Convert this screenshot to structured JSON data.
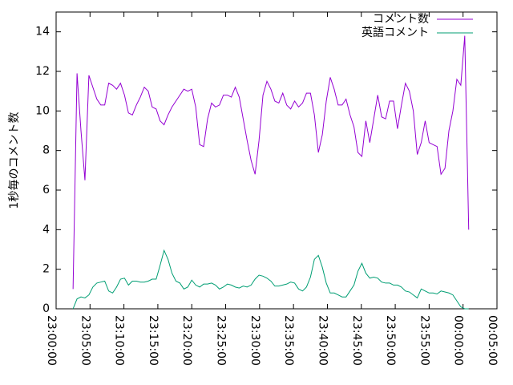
{
  "chart_data": {
    "type": "line",
    "ylabel": "1秒毎のコメント数",
    "legend": "top right",
    "x": [
      "23:02:30",
      "23:03:05",
      "23:03:40",
      "23:04:15",
      "23:04:50",
      "23:05:25",
      "23:06:00",
      "23:06:35",
      "23:07:10",
      "23:07:45",
      "23:08:20",
      "23:08:55",
      "23:09:30",
      "23:10:05",
      "23:10:40",
      "23:11:15",
      "23:11:50",
      "23:12:25",
      "23:13:00",
      "23:13:35",
      "23:14:10",
      "23:14:45",
      "23:15:20",
      "23:15:55",
      "23:16:30",
      "23:17:05",
      "23:17:40",
      "23:18:15",
      "23:18:50",
      "23:19:25",
      "23:20:00",
      "23:20:35",
      "23:21:10",
      "23:21:45",
      "23:22:20",
      "23:22:55",
      "23:23:30",
      "23:24:05",
      "23:24:40",
      "23:25:15",
      "23:25:50",
      "23:26:25",
      "23:27:00",
      "23:27:35",
      "23:28:10",
      "23:28:45",
      "23:29:20",
      "23:29:55",
      "23:30:30",
      "23:31:05",
      "23:31:40",
      "23:32:15",
      "23:32:50",
      "23:33:25",
      "23:34:00",
      "23:34:35",
      "23:35:10",
      "23:35:45",
      "23:36:20",
      "23:36:55",
      "23:37:30",
      "23:38:05",
      "23:38:40",
      "23:39:15",
      "23:39:50",
      "23:40:25",
      "23:41:00",
      "23:41:35",
      "23:42:10",
      "23:42:45",
      "23:43:20",
      "23:43:55",
      "23:44:30",
      "23:45:05",
      "23:45:40",
      "23:46:15",
      "23:46:50",
      "23:47:25",
      "23:48:00",
      "23:48:35",
      "23:49:10",
      "23:49:45",
      "23:50:20",
      "23:50:55",
      "23:51:30",
      "23:52:05",
      "23:52:40",
      "23:53:15",
      "23:53:50",
      "23:54:25",
      "23:55:00",
      "23:55:35",
      "23:56:10",
      "23:56:45",
      "23:57:20",
      "23:57:55",
      "23:58:30",
      "23:59:05",
      "23:59:40",
      "00:00:15",
      "00:00:50"
    ],
    "series": [
      {
        "name": "コメント数",
        "color": "#9400d3",
        "values": [
          1.0,
          11.9,
          9.0,
          6.5,
          11.8,
          11.2,
          10.6,
          10.3,
          10.3,
          11.4,
          11.3,
          11.1,
          11.4,
          10.8,
          9.9,
          9.8,
          10.3,
          10.7,
          11.2,
          11.0,
          10.2,
          10.1,
          9.5,
          9.3,
          9.8,
          10.2,
          10.5,
          10.8,
          11.1,
          11.0,
          11.1,
          10.2,
          8.3,
          8.2,
          9.6,
          10.4,
          10.2,
          10.3,
          10.8,
          10.8,
          10.7,
          11.2,
          10.7,
          9.6,
          8.5,
          7.5,
          6.8,
          8.5,
          10.8,
          11.5,
          11.1,
          10.5,
          10.4,
          10.9,
          10.3,
          10.1,
          10.5,
          10.2,
          10.4,
          10.9,
          10.9,
          9.8,
          7.9,
          8.8,
          10.5,
          11.7,
          11.1,
          10.3,
          10.3,
          10.6,
          9.8,
          9.2,
          7.9,
          7.7,
          9.5,
          8.4,
          9.6,
          10.8,
          9.7,
          9.6,
          10.5,
          10.5,
          9.1,
          10.3,
          11.4,
          11.0,
          10.0,
          7.8,
          8.4,
          9.5,
          8.4,
          8.3,
          8.2,
          6.8,
          7.1,
          9.0,
          10.0,
          11.6,
          11.3,
          13.8,
          4.0
        ]
      },
      {
        "name": "英語コメント",
        "color": "#009e73",
        "values": [
          0,
          0.5,
          0.6,
          0.55,
          0.7,
          1.1,
          1.3,
          1.35,
          1.4,
          0.9,
          0.8,
          1.1,
          1.5,
          1.55,
          1.2,
          1.4,
          1.4,
          1.35,
          1.35,
          1.4,
          1.5,
          1.5,
          2.2,
          2.95,
          2.5,
          1.8,
          1.4,
          1.3,
          1.0,
          1.1,
          1.45,
          1.2,
          1.1,
          1.25,
          1.25,
          1.3,
          1.2,
          1.0,
          1.1,
          1.25,
          1.2,
          1.1,
          1.05,
          1.15,
          1.1,
          1.2,
          1.5,
          1.7,
          1.65,
          1.55,
          1.4,
          1.15,
          1.15,
          1.2,
          1.25,
          1.35,
          1.3,
          1.0,
          0.9,
          1.1,
          1.6,
          2.5,
          2.7,
          2.1,
          1.3,
          0.8,
          0.8,
          0.7,
          0.6,
          0.6,
          0.9,
          1.2,
          1.9,
          2.3,
          1.8,
          1.55,
          1.6,
          1.55,
          1.35,
          1.3,
          1.3,
          1.2,
          1.2,
          1.1,
          0.9,
          0.85,
          0.7,
          0.55,
          1.0,
          0.9,
          0.8,
          0.8,
          0.75,
          0.9,
          0.85,
          0.8,
          0.7,
          0.4,
          0.1,
          0,
          0
        ]
      }
    ],
    "xlim": [
      "23:00:00",
      "00:05:00"
    ],
    "xticks": [
      "23:00:00",
      "23:05:00",
      "23:10:00",
      "23:15:00",
      "23:20:00",
      "23:25:00",
      "23:30:00",
      "23:35:00",
      "23:40:00",
      "23:45:00",
      "23:50:00",
      "23:55:00",
      "00:00:00",
      "00:05:00"
    ],
    "ylim": [
      0,
      15
    ],
    "yticks": [
      0,
      2,
      4,
      6,
      8,
      10,
      12,
      14
    ]
  }
}
